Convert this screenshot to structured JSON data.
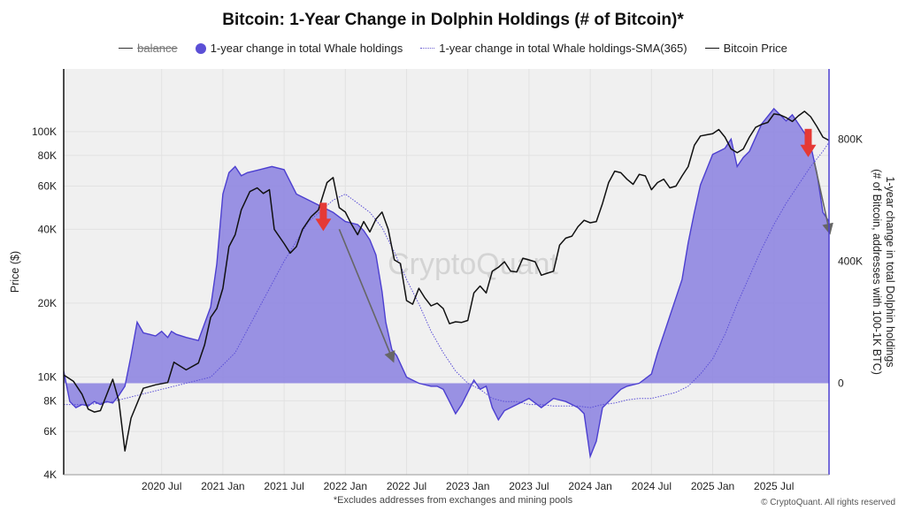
{
  "chart_data": {
    "type": "line",
    "title": "Bitcoin: 1-Year Change in Dolphin Holdings (# of Bitcoin)*",
    "footnote": "*Excludes addresses from exchanges and mining pools",
    "copyright": "© CryptoQuant. All rights reserved",
    "watermark": "CryptoQuant",
    "legend": [
      {
        "name": "balance",
        "style": "line",
        "disabled": true
      },
      {
        "name": "1-year change in total Whale holdings",
        "style": "dot",
        "color": "#5b4fd6"
      },
      {
        "name": "1-year change in total Whale holdings-SMA(365)",
        "style": "dotted",
        "color": "#6a5cd1"
      },
      {
        "name": "Bitcoin Price",
        "style": "line",
        "color": "#111111"
      }
    ],
    "x_axis": {
      "range": [
        2019.7,
        2025.95
      ],
      "ticks": [
        {
          "label": "2020 Jul",
          "value": 2020.5
        },
        {
          "label": "2021 Jan",
          "value": 2021.0
        },
        {
          "label": "2021 Jul",
          "value": 2021.5
        },
        {
          "label": "2022 Jan",
          "value": 2022.0
        },
        {
          "label": "2022 Jul",
          "value": 2022.5
        },
        {
          "label": "2023 Jan",
          "value": 2023.0
        },
        {
          "label": "2023 Jul",
          "value": 2023.5
        },
        {
          "label": "2024 Jan",
          "value": 2024.0
        },
        {
          "label": "2024 Jul",
          "value": 2024.5
        },
        {
          "label": "2025 Jan",
          "value": 2025.0
        },
        {
          "label": "2025 Jul",
          "value": 2025.5
        }
      ]
    },
    "left_axis": {
      "title": "Price ($)",
      "scale": "log",
      "range": [
        4000,
        180000
      ],
      "ticks": [
        {
          "label": "4K",
          "value": 4000
        },
        {
          "label": "6K",
          "value": 6000
        },
        {
          "label": "8K",
          "value": 8000
        },
        {
          "label": "10K",
          "value": 10000
        },
        {
          "label": "20K",
          "value": 20000
        },
        {
          "label": "40K",
          "value": 40000
        },
        {
          "label": "60K",
          "value": 60000
        },
        {
          "label": "80K",
          "value": 80000
        },
        {
          "label": "100K",
          "value": 100000
        }
      ]
    },
    "right_axis": {
      "title": "1-year change in total Dolphin holdings (# of Bitcoin, addresses with 100-1K BTC)",
      "range": [
        -300000,
        1030000
      ],
      "ticks": [
        {
          "label": "0",
          "value": 0
        },
        {
          "label": "400K",
          "value": 400000
        },
        {
          "label": "800K",
          "value": 800000
        }
      ]
    },
    "series": [
      {
        "name": "Bitcoin Price",
        "axis": "left",
        "x": [
          2019.7,
          2019.78,
          2019.85,
          2019.9,
          2019.95,
          2020.0,
          2020.1,
          2020.15,
          2020.2,
          2020.25,
          2020.35,
          2020.45,
          2020.55,
          2020.6,
          2020.7,
          2020.8,
          2020.85,
          2020.9,
          2020.95,
          2021.0,
          2021.05,
          2021.1,
          2021.15,
          2021.22,
          2021.28,
          2021.33,
          2021.38,
          2021.42,
          2021.5,
          2021.55,
          2021.6,
          2021.65,
          2021.72,
          2021.78,
          2021.85,
          2021.9,
          2021.95,
          2022.0,
          2022.05,
          2022.1,
          2022.15,
          2022.2,
          2022.25,
          2022.3,
          2022.35,
          2022.4,
          2022.45,
          2022.5,
          2022.55,
          2022.6,
          2022.65,
          2022.7,
          2022.75,
          2022.8,
          2022.85,
          2022.9,
          2022.95,
          2023.0,
          2023.05,
          2023.1,
          2023.15,
          2023.2,
          2023.25,
          2023.3,
          2023.35,
          2023.4,
          2023.45,
          2023.5,
          2023.55,
          2023.6,
          2023.65,
          2023.7,
          2023.75,
          2023.8,
          2023.85,
          2023.9,
          2023.95,
          2024.0,
          2024.05,
          2024.1,
          2024.15,
          2024.2,
          2024.25,
          2024.3,
          2024.35,
          2024.4,
          2024.45,
          2024.5,
          2024.55,
          2024.6,
          2024.65,
          2024.7,
          2024.75,
          2024.8,
          2024.85,
          2024.9,
          2024.95,
          2025.0,
          2025.05,
          2025.1,
          2025.15,
          2025.2,
          2025.25,
          2025.3,
          2025.35,
          2025.4,
          2025.45,
          2025.5,
          2025.55,
          2025.6,
          2025.65,
          2025.7,
          2025.75,
          2025.8,
          2025.85,
          2025.9,
          2025.95
        ],
        "values": [
          10200,
          9600,
          8500,
          7400,
          7200,
          7300,
          9800,
          8000,
          5000,
          6800,
          9000,
          9300,
          9500,
          11500,
          10700,
          11400,
          13500,
          17500,
          19000,
          23000,
          34000,
          38000,
          48000,
          57000,
          59000,
          56000,
          58000,
          40000,
          35000,
          32000,
          34000,
          40000,
          45000,
          48000,
          62000,
          65000,
          49000,
          47000,
          42000,
          38000,
          43000,
          39000,
          44000,
          47000,
          40000,
          30000,
          29000,
          20500,
          19800,
          23000,
          21000,
          19500,
          20000,
          19000,
          16500,
          16800,
          16700,
          17000,
          22000,
          23500,
          22000,
          27000,
          28000,
          29500,
          27000,
          26800,
          30500,
          30000,
          29500,
          26000,
          26500,
          27000,
          34500,
          36800,
          37500,
          41000,
          43500,
          42500,
          43000,
          51000,
          62000,
          69000,
          68000,
          64000,
          61000,
          67000,
          66000,
          58000,
          62000,
          64000,
          59000,
          60000,
          66000,
          72000,
          88000,
          96000,
          97000,
          98000,
          102000,
          95000,
          85000,
          82000,
          85000,
          95000,
          104000,
          107000,
          109000,
          118000,
          117000,
          114000,
          110000,
          116000,
          121000,
          115000,
          105000,
          95000,
          92000
        ]
      },
      {
        "name": "1-year change in total Whale holdings",
        "axis": "right",
        "x": [
          2019.7,
          2019.75,
          2019.8,
          2019.85,
          2019.9,
          2019.95,
          2020.0,
          2020.05,
          2020.1,
          2020.15,
          2020.2,
          2020.25,
          2020.3,
          2020.35,
          2020.4,
          2020.45,
          2020.5,
          2020.55,
          2020.58,
          2020.62,
          2020.7,
          2020.8,
          2020.9,
          2020.95,
          2021.0,
          2021.05,
          2021.1,
          2021.15,
          2021.2,
          2021.3,
          2021.4,
          2021.5,
          2021.6,
          2021.7,
          2021.8,
          2021.9,
          2022.0,
          2022.1,
          2022.15,
          2022.2,
          2022.25,
          2022.3,
          2022.33,
          2022.38,
          2022.42,
          2022.5,
          2022.6,
          2022.7,
          2022.75,
          2022.8,
          2022.85,
          2022.9,
          2022.95,
          2023.0,
          2023.05,
          2023.1,
          2023.15,
          2023.2,
          2023.25,
          2023.3,
          2023.4,
          2023.5,
          2023.6,
          2023.7,
          2023.8,
          2023.85,
          2023.9,
          2023.95,
          2024.0,
          2024.05,
          2024.1,
          2024.15,
          2024.2,
          2024.25,
          2024.3,
          2024.4,
          2024.5,
          2024.55,
          2024.6,
          2024.65,
          2024.7,
          2024.75,
          2024.8,
          2024.85,
          2024.9,
          2024.95,
          2025.0,
          2025.05,
          2025.1,
          2025.15,
          2025.2,
          2025.25,
          2025.3,
          2025.4,
          2025.5,
          2025.6,
          2025.65,
          2025.7,
          2025.75,
          2025.8,
          2025.85,
          2025.9,
          2025.95
        ],
        "values": [
          40000,
          -60000,
          -80000,
          -70000,
          -75000,
          -60000,
          -70000,
          -60000,
          -65000,
          -40000,
          -10000,
          90000,
          200000,
          165000,
          160000,
          155000,
          170000,
          150000,
          170000,
          160000,
          150000,
          140000,
          250000,
          390000,
          620000,
          690000,
          710000,
          680000,
          690000,
          700000,
          710000,
          700000,
          620000,
          600000,
          580000,
          560000,
          530000,
          520000,
          500000,
          470000,
          420000,
          300000,
          200000,
          110000,
          90000,
          20000,
          0,
          -10000,
          -10000,
          -20000,
          -60000,
          -100000,
          -70000,
          -30000,
          10000,
          -20000,
          -10000,
          -80000,
          -120000,
          -90000,
          -70000,
          -50000,
          -80000,
          -50000,
          -60000,
          -70000,
          -80000,
          -100000,
          -240000,
          -190000,
          -80000,
          -60000,
          -40000,
          -20000,
          -10000,
          0,
          30000,
          100000,
          160000,
          220000,
          280000,
          340000,
          460000,
          560000,
          650000,
          700000,
          750000,
          760000,
          770000,
          800000,
          710000,
          740000,
          760000,
          850000,
          900000,
          860000,
          880000,
          850000,
          820000,
          780000,
          690000,
          560000,
          530000
        ]
      },
      {
        "name": "1-year change in total Whale holdings-SMA(365)",
        "axis": "right",
        "x": [
          2019.7,
          2019.9,
          2020.1,
          2020.3,
          2020.5,
          2020.7,
          2020.9,
          2021.1,
          2021.3,
          2021.5,
          2021.7,
          2021.9,
          2022.0,
          2022.1,
          2022.2,
          2022.3,
          2022.4,
          2022.5,
          2022.6,
          2022.7,
          2022.8,
          2022.9,
          2023.0,
          2023.1,
          2023.2,
          2023.3,
          2023.4,
          2023.5,
          2023.6,
          2023.7,
          2023.8,
          2023.9,
          2024.0,
          2024.1,
          2024.2,
          2024.3,
          2024.4,
          2024.5,
          2024.6,
          2024.7,
          2024.8,
          2024.9,
          2025.0,
          2025.1,
          2025.2,
          2025.3,
          2025.4,
          2025.5,
          2025.6,
          2025.7,
          2025.8,
          2025.9,
          2025.95
        ],
        "values": [
          -70000,
          -70000,
          -60000,
          -40000,
          -20000,
          0,
          20000,
          100000,
          250000,
          400000,
          530000,
          600000,
          620000,
          590000,
          560000,
          510000,
          430000,
          340000,
          260000,
          170000,
          100000,
          40000,
          0,
          -20000,
          -50000,
          -60000,
          -60000,
          -70000,
          -70000,
          -75000,
          -75000,
          -75000,
          -80000,
          -70000,
          -65000,
          -55000,
          -50000,
          -50000,
          -40000,
          -30000,
          -10000,
          30000,
          80000,
          160000,
          260000,
          350000,
          440000,
          520000,
          590000,
          650000,
          710000,
          760000,
          790000
        ]
      }
    ],
    "annotations": {
      "red_arrows": [
        {
          "x": 2021.82,
          "y_value": 40000,
          "direction": "down"
        },
        {
          "x": 2025.78,
          "y_value": 80000,
          "direction": "down"
        }
      ],
      "gray_arrows": [
        {
          "from_x": 2021.95,
          "from_y": 40000,
          "to_x": 2022.38,
          "to_y": 12000
        },
        {
          "from_x": 2025.83,
          "from_y": 75000,
          "to_x": 2025.95,
          "to_y": 40000
        }
      ]
    }
  }
}
